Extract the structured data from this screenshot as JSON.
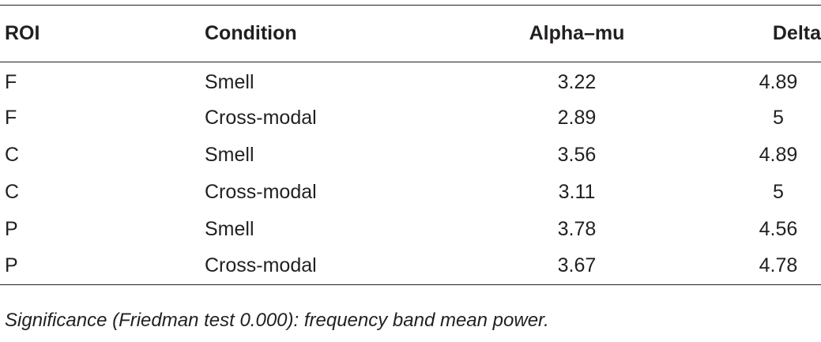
{
  "table": {
    "columns": [
      "ROI",
      "Condition",
      "Alpha–mu",
      "Delta"
    ],
    "rows": [
      [
        "F",
        "Smell",
        "3.22",
        "4.89"
      ],
      [
        "F",
        "Cross-modal",
        "2.89",
        "5"
      ],
      [
        "C",
        "Smell",
        "3.56",
        "4.89"
      ],
      [
        "C",
        "Cross-modal",
        "3.11",
        "5"
      ],
      [
        "P",
        "Smell",
        "3.78",
        "4.56"
      ],
      [
        "P",
        "Cross-modal",
        "3.67",
        "4.78"
      ]
    ],
    "footnote": "Significance (Friedman test 0.000): frequency band mean power."
  }
}
